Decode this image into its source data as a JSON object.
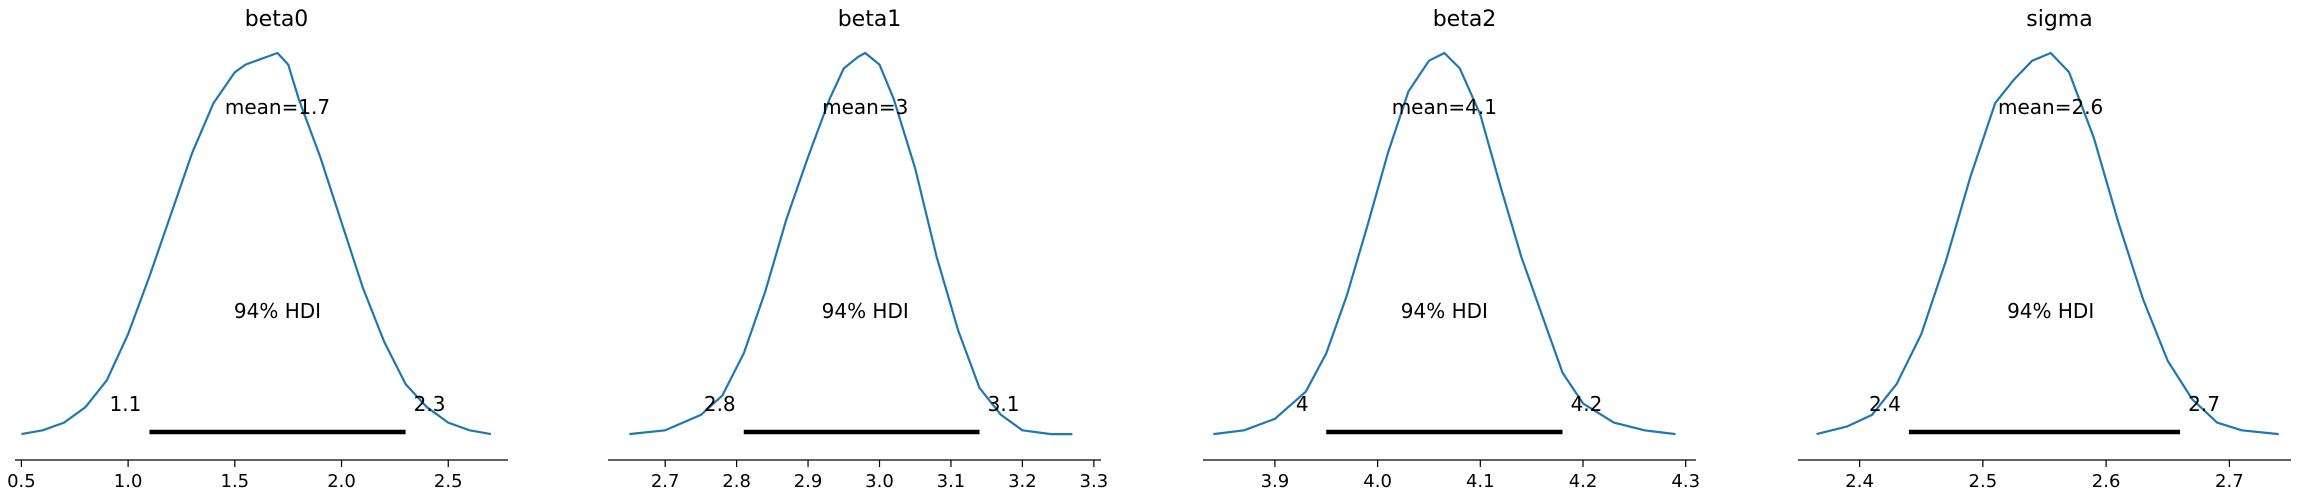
{
  "chart_data": [
    {
      "type": "area",
      "title": "beta0",
      "mean_label": "mean=1.7",
      "hdi_label": "94% HDI",
      "hdi": [
        1.1,
        2.3
      ],
      "hdi_low_label": "1.1",
      "hdi_high_label": "2.3",
      "xlim": [
        0.47,
        2.78
      ],
      "xticks": [
        0.5,
        1.0,
        1.5,
        2.0,
        2.5
      ],
      "xtick_labels": [
        "0.5",
        "1.0",
        "1.5",
        "2.0",
        "2.5"
      ],
      "line_color": "#1f77b4",
      "density": {
        "x": [
          0.5,
          0.6,
          0.7,
          0.8,
          0.9,
          1.0,
          1.1,
          1.2,
          1.3,
          1.4,
          1.5,
          1.55,
          1.6,
          1.65,
          1.7,
          1.75,
          1.8,
          1.9,
          2.0,
          2.1,
          2.2,
          2.3,
          2.4,
          2.5,
          2.6,
          2.7
        ],
        "y": [
          0.01,
          0.02,
          0.04,
          0.08,
          0.15,
          0.27,
          0.42,
          0.58,
          0.74,
          0.87,
          0.95,
          0.97,
          0.98,
          0.99,
          1.0,
          0.97,
          0.88,
          0.73,
          0.56,
          0.39,
          0.25,
          0.14,
          0.08,
          0.04,
          0.02,
          0.01
        ]
      }
    },
    {
      "type": "area",
      "title": "beta1",
      "mean_label": "mean=3",
      "hdi_label": "94% HDI",
      "hdi": [
        2.81,
        3.14
      ],
      "hdi_low_label": "2.8",
      "hdi_high_label": "3.1",
      "xlim": [
        2.62,
        3.31
      ],
      "xticks": [
        2.7,
        2.8,
        2.9,
        3.0,
        3.1,
        3.2,
        3.3
      ],
      "xtick_labels": [
        "2.7",
        "2.8",
        "2.9",
        "3.0",
        "3.1",
        "3.2",
        "3.3"
      ],
      "line_color": "#1f77b4",
      "density": {
        "x": [
          2.65,
          2.7,
          2.75,
          2.78,
          2.81,
          2.84,
          2.87,
          2.9,
          2.93,
          2.95,
          2.97,
          2.98,
          3.0,
          3.02,
          3.05,
          3.08,
          3.11,
          3.14,
          3.17,
          3.2,
          3.24,
          3.27
        ],
        "y": [
          0.01,
          0.02,
          0.06,
          0.11,
          0.22,
          0.38,
          0.57,
          0.73,
          0.88,
          0.96,
          0.99,
          1.0,
          0.97,
          0.88,
          0.7,
          0.47,
          0.28,
          0.13,
          0.06,
          0.02,
          0.01,
          0.01
        ]
      }
    },
    {
      "type": "area",
      "title": "beta2",
      "mean_label": "mean=4.1",
      "hdi_label": "94% HDI",
      "hdi": [
        3.95,
        4.18
      ],
      "hdi_low_label": "4",
      "hdi_high_label": "4.2",
      "xlim": [
        3.83,
        4.31
      ],
      "xticks": [
        3.9,
        4.0,
        4.1,
        4.2,
        4.3
      ],
      "xtick_labels": [
        "3.9",
        "4.0",
        "4.1",
        "4.2",
        "4.3"
      ],
      "line_color": "#1f77b4",
      "density": {
        "x": [
          3.84,
          3.87,
          3.9,
          3.93,
          3.95,
          3.97,
          3.99,
          4.01,
          4.03,
          4.05,
          4.065,
          4.08,
          4.1,
          4.12,
          4.14,
          4.16,
          4.18,
          4.2,
          4.23,
          4.26,
          4.29
        ],
        "y": [
          0.01,
          0.02,
          0.05,
          0.12,
          0.22,
          0.37,
          0.55,
          0.74,
          0.9,
          0.98,
          1.0,
          0.96,
          0.84,
          0.65,
          0.47,
          0.32,
          0.17,
          0.09,
          0.04,
          0.02,
          0.01
        ]
      }
    },
    {
      "type": "area",
      "title": "sigma",
      "mean_label": "mean=2.6",
      "hdi_label": "94% HDI",
      "hdi": [
        2.44,
        2.66
      ],
      "hdi_low_label": "2.4",
      "hdi_high_label": "2.7",
      "xlim": [
        2.35,
        2.75
      ],
      "xticks": [
        2.4,
        2.5,
        2.6,
        2.7
      ],
      "xtick_labels": [
        "2.4",
        "2.5",
        "2.6",
        "2.7"
      ],
      "line_color": "#1f77b4",
      "density": {
        "x": [
          2.365,
          2.39,
          2.41,
          2.43,
          2.45,
          2.47,
          2.49,
          2.51,
          2.525,
          2.54,
          2.555,
          2.57,
          2.59,
          2.61,
          2.63,
          2.65,
          2.67,
          2.69,
          2.71,
          2.74
        ],
        "y": [
          0.01,
          0.03,
          0.06,
          0.14,
          0.27,
          0.46,
          0.68,
          0.87,
          0.93,
          0.98,
          1.0,
          0.95,
          0.78,
          0.56,
          0.36,
          0.2,
          0.1,
          0.04,
          0.02,
          0.01
        ]
      }
    }
  ]
}
